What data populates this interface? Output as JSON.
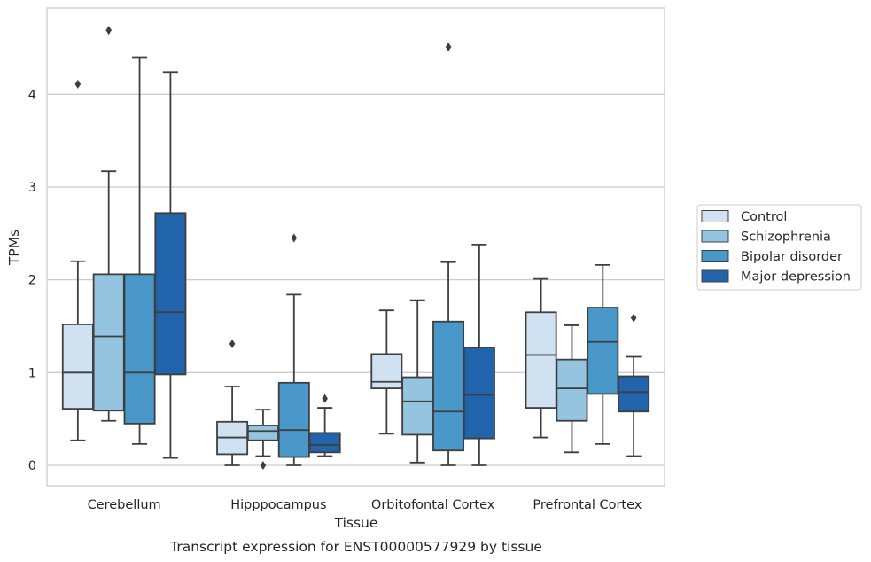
{
  "caption": "Transcript expression for ENST00000577929 by tissue",
  "chart_data": {
    "type": "box",
    "xlabel": "Tissue",
    "ylabel": "TPMs",
    "ylim": [
      -0.22,
      4.93
    ],
    "yticks": [
      0,
      1,
      2,
      3,
      4
    ],
    "grid": "horizontal",
    "legend_position": "right",
    "categories": [
      "Cerebellum",
      "Hipppocampus",
      "Orbitofontal Cortex",
      "Prefrontal Cortex"
    ],
    "series": [
      {
        "name": "Control",
        "color": "#d0e1f2",
        "boxes": [
          {
            "whislo": 0.27,
            "q1": 0.61,
            "med": 1.0,
            "q3": 1.52,
            "whishi": 2.2,
            "fliers": [
              4.11
            ]
          },
          {
            "whislo": 0.0,
            "q1": 0.12,
            "med": 0.3,
            "q3": 0.47,
            "whishi": 0.85,
            "fliers": [
              1.31
            ]
          },
          {
            "whislo": 0.34,
            "q1": 0.83,
            "med": 0.9,
            "q3": 1.2,
            "whishi": 1.67,
            "fliers": []
          },
          {
            "whislo": 0.3,
            "q1": 0.62,
            "med": 1.19,
            "q3": 1.65,
            "whishi": 2.01,
            "fliers": []
          }
        ]
      },
      {
        "name": "Schizophrenia",
        "color": "#94c4df",
        "boxes": [
          {
            "whislo": 0.48,
            "q1": 0.59,
            "med": 1.39,
            "q3": 2.06,
            "whishi": 3.17,
            "fliers": [
              4.69
            ]
          },
          {
            "whislo": 0.1,
            "q1": 0.27,
            "med": 0.37,
            "q3": 0.43,
            "whishi": 0.6,
            "fliers": [
              0.0
            ]
          },
          {
            "whislo": 0.03,
            "q1": 0.33,
            "med": 0.69,
            "q3": 0.95,
            "whishi": 1.78,
            "fliers": []
          },
          {
            "whislo": 0.14,
            "q1": 0.48,
            "med": 0.83,
            "q3": 1.14,
            "whishi": 1.51,
            "fliers": []
          }
        ]
      },
      {
        "name": "Bipolar disorder",
        "color": "#4a98c9",
        "boxes": [
          {
            "whislo": 0.23,
            "q1": 0.45,
            "med": 1.0,
            "q3": 2.06,
            "whishi": 4.4,
            "fliers": []
          },
          {
            "whislo": 0.0,
            "q1": 0.09,
            "med": 0.38,
            "q3": 0.89,
            "whishi": 1.84,
            "fliers": [
              2.45
            ]
          },
          {
            "whislo": 0.0,
            "q1": 0.16,
            "med": 0.58,
            "q3": 1.55,
            "whishi": 2.19,
            "fliers": [
              4.51
            ]
          },
          {
            "whislo": 0.23,
            "q1": 0.77,
            "med": 1.33,
            "q3": 1.7,
            "whishi": 2.16,
            "fliers": []
          }
        ]
      },
      {
        "name": "Major depression",
        "color": "#2164ab",
        "boxes": [
          {
            "whislo": 0.08,
            "q1": 0.98,
            "med": 1.65,
            "q3": 2.72,
            "whishi": 4.24,
            "fliers": []
          },
          {
            "whislo": 0.1,
            "q1": 0.14,
            "med": 0.22,
            "q3": 0.35,
            "whishi": 0.62,
            "fliers": [
              0.72
            ]
          },
          {
            "whislo": 0.0,
            "q1": 0.29,
            "med": 0.76,
            "q3": 1.27,
            "whishi": 2.38,
            "fliers": []
          },
          {
            "whislo": 0.1,
            "q1": 0.58,
            "med": 0.79,
            "q3": 0.96,
            "whishi": 1.17,
            "fliers": [
              1.59
            ]
          }
        ]
      }
    ]
  }
}
